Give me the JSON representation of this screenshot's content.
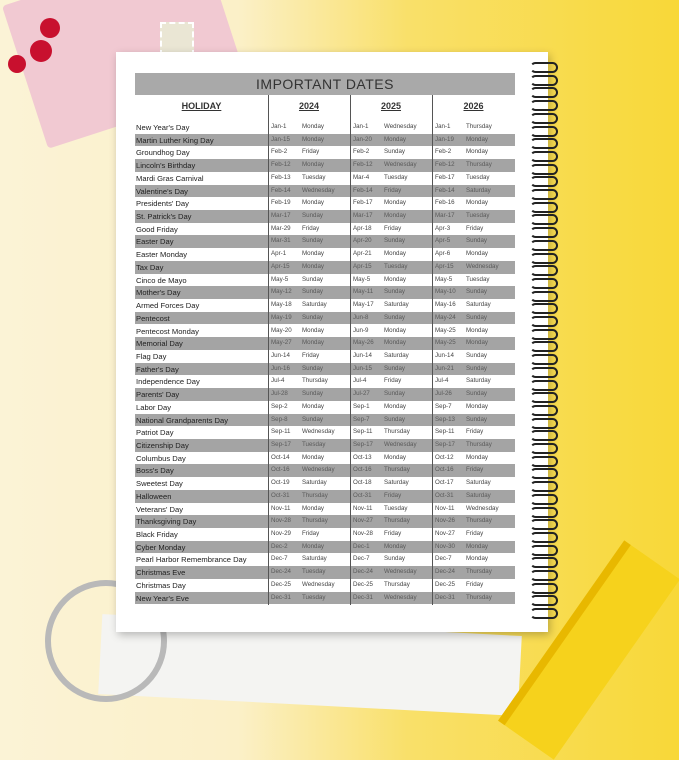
{
  "title": "IMPORTANT DATES",
  "headers": {
    "holiday": "HOLIDAY",
    "years": [
      "2024",
      "2025",
      "2026"
    ]
  },
  "rows": [
    {
      "holiday": "New Year's Day",
      "dates": [
        [
          "Jan-1",
          "Monday"
        ],
        [
          "Jan-1",
          "Wednesday"
        ],
        [
          "Jan-1",
          "Thursday"
        ]
      ]
    },
    {
      "holiday": "Martin Luther King Day",
      "dates": [
        [
          "Jan-15",
          "Monday"
        ],
        [
          "Jan-20",
          "Monday"
        ],
        [
          "Jan-19",
          "Monday"
        ]
      ]
    },
    {
      "holiday": "Groundhog Day",
      "dates": [
        [
          "Feb-2",
          "Friday"
        ],
        [
          "Feb-2",
          "Sunday"
        ],
        [
          "Feb-2",
          "Monday"
        ]
      ]
    },
    {
      "holiday": "Lincoln's Birthday",
      "dates": [
        [
          "Feb-12",
          "Monday"
        ],
        [
          "Feb-12",
          "Wednesday"
        ],
        [
          "Feb-12",
          "Thursday"
        ]
      ]
    },
    {
      "holiday": "Mardi Gras Carnival",
      "dates": [
        [
          "Feb-13",
          "Tuesday"
        ],
        [
          "Mar-4",
          "Tuesday"
        ],
        [
          "Feb-17",
          "Tuesday"
        ]
      ]
    },
    {
      "holiday": "Valentine's Day",
      "dates": [
        [
          "Feb-14",
          "Wednesday"
        ],
        [
          "Feb-14",
          "Friday"
        ],
        [
          "Feb-14",
          "Saturday"
        ]
      ]
    },
    {
      "holiday": "Presidents' Day",
      "dates": [
        [
          "Feb-19",
          "Monday"
        ],
        [
          "Feb-17",
          "Monday"
        ],
        [
          "Feb-16",
          "Monday"
        ]
      ]
    },
    {
      "holiday": "St. Patrick's Day",
      "dates": [
        [
          "Mar-17",
          "Sunday"
        ],
        [
          "Mar-17",
          "Monday"
        ],
        [
          "Mar-17",
          "Tuesday"
        ]
      ]
    },
    {
      "holiday": "Good Friday",
      "dates": [
        [
          "Mar-29",
          "Friday"
        ],
        [
          "Apr-18",
          "Friday"
        ],
        [
          "Apr-3",
          "Friday"
        ]
      ]
    },
    {
      "holiday": "Easter Day",
      "dates": [
        [
          "Mar-31",
          "Sunday"
        ],
        [
          "Apr-20",
          "Sunday"
        ],
        [
          "Apr-5",
          "Sunday"
        ]
      ]
    },
    {
      "holiday": "Easter Monday",
      "dates": [
        [
          "Apr-1",
          "Monday"
        ],
        [
          "Apr-21",
          "Monday"
        ],
        [
          "Apr-6",
          "Monday"
        ]
      ]
    },
    {
      "holiday": "Tax Day",
      "dates": [
        [
          "Apr-15",
          "Monday"
        ],
        [
          "Apr-15",
          "Tuesday"
        ],
        [
          "Apr-15",
          "Wednesday"
        ]
      ]
    },
    {
      "holiday": "Cinco de Mayo",
      "dates": [
        [
          "May-5",
          "Sunday"
        ],
        [
          "May-5",
          "Monday"
        ],
        [
          "May-5",
          "Tuesday"
        ]
      ]
    },
    {
      "holiday": "Mother's Day",
      "dates": [
        [
          "May-12",
          "Sunday"
        ],
        [
          "May-11",
          "Sunday"
        ],
        [
          "May-10",
          "Sunday"
        ]
      ]
    },
    {
      "holiday": "Armed Forces Day",
      "dates": [
        [
          "May-18",
          "Saturday"
        ],
        [
          "May-17",
          "Saturday"
        ],
        [
          "May-16",
          "Saturday"
        ]
      ]
    },
    {
      "holiday": "Pentecost",
      "dates": [
        [
          "May-19",
          "Sunday"
        ],
        [
          "Jun-8",
          "Sunday"
        ],
        [
          "May-24",
          "Sunday"
        ]
      ]
    },
    {
      "holiday": "Pentecost Monday",
      "dates": [
        [
          "May-20",
          "Monday"
        ],
        [
          "Jun-9",
          "Monday"
        ],
        [
          "May-25",
          "Monday"
        ]
      ]
    },
    {
      "holiday": "Memorial Day",
      "dates": [
        [
          "May-27",
          "Monday"
        ],
        [
          "May-26",
          "Monday"
        ],
        [
          "May-25",
          "Monday"
        ]
      ]
    },
    {
      "holiday": "Flag Day",
      "dates": [
        [
          "Jun-14",
          "Friday"
        ],
        [
          "Jun-14",
          "Saturday"
        ],
        [
          "Jun-14",
          "Sunday"
        ]
      ]
    },
    {
      "holiday": "Father's Day",
      "dates": [
        [
          "Jun-16",
          "Sunday"
        ],
        [
          "Jun-15",
          "Sunday"
        ],
        [
          "Jun-21",
          "Sunday"
        ]
      ]
    },
    {
      "holiday": "Independence Day",
      "dates": [
        [
          "Jul-4",
          "Thursday"
        ],
        [
          "Jul-4",
          "Friday"
        ],
        [
          "Jul-4",
          "Saturday"
        ]
      ]
    },
    {
      "holiday": "Parents' Day",
      "dates": [
        [
          "Jul-28",
          "Sunday"
        ],
        [
          "Jul-27",
          "Sunday"
        ],
        [
          "Jul-26",
          "Sunday"
        ]
      ]
    },
    {
      "holiday": "Labor Day",
      "dates": [
        [
          "Sep-2",
          "Monday"
        ],
        [
          "Sep-1",
          "Monday"
        ],
        [
          "Sep-7",
          "Monday"
        ]
      ]
    },
    {
      "holiday": "National Grandparents Day",
      "dates": [
        [
          "Sep-8",
          "Sunday"
        ],
        [
          "Sep-7",
          "Sunday"
        ],
        [
          "Sep-13",
          "Sunday"
        ]
      ]
    },
    {
      "holiday": "Patriot Day",
      "dates": [
        [
          "Sep-11",
          "Wednesday"
        ],
        [
          "Sep-11",
          "Thursday"
        ],
        [
          "Sep-11",
          "Friday"
        ]
      ]
    },
    {
      "holiday": "Citizenship Day",
      "dates": [
        [
          "Sep-17",
          "Tuesday"
        ],
        [
          "Sep-17",
          "Wednesday"
        ],
        [
          "Sep-17",
          "Thursday"
        ]
      ]
    },
    {
      "holiday": "Columbus Day",
      "dates": [
        [
          "Oct-14",
          "Monday"
        ],
        [
          "Oct-13",
          "Monday"
        ],
        [
          "Oct-12",
          "Monday"
        ]
      ]
    },
    {
      "holiday": "Boss's Day",
      "dates": [
        [
          "Oct-16",
          "Wednesday"
        ],
        [
          "Oct-16",
          "Thursday"
        ],
        [
          "Oct-16",
          "Friday"
        ]
      ]
    },
    {
      "holiday": "Sweetest Day",
      "dates": [
        [
          "Oct-19",
          "Saturday"
        ],
        [
          "Oct-18",
          "Saturday"
        ],
        [
          "Oct-17",
          "Saturday"
        ]
      ]
    },
    {
      "holiday": "Halloween",
      "dates": [
        [
          "Oct-31",
          "Thursday"
        ],
        [
          "Oct-31",
          "Friday"
        ],
        [
          "Oct-31",
          "Saturday"
        ]
      ]
    },
    {
      "holiday": "Veterans' Day",
      "dates": [
        [
          "Nov-11",
          "Monday"
        ],
        [
          "Nov-11",
          "Tuesday"
        ],
        [
          "Nov-11",
          "Wednesday"
        ]
      ]
    },
    {
      "holiday": "Thanksgiving Day",
      "dates": [
        [
          "Nov-28",
          "Thursday"
        ],
        [
          "Nov-27",
          "Thursday"
        ],
        [
          "Nov-26",
          "Thursday"
        ]
      ]
    },
    {
      "holiday": "Black Friday",
      "dates": [
        [
          "Nov-29",
          "Friday"
        ],
        [
          "Nov-28",
          "Friday"
        ],
        [
          "Nov-27",
          "Friday"
        ]
      ]
    },
    {
      "holiday": "Cyber Monday",
      "dates": [
        [
          "Dec-2",
          "Monday"
        ],
        [
          "Dec-1",
          "Monday"
        ],
        [
          "Nov-30",
          "Monday"
        ]
      ]
    },
    {
      "holiday": "Pearl Harbor Remembrance Day",
      "dates": [
        [
          "Dec-7",
          "Saturday"
        ],
        [
          "Dec-7",
          "Sunday"
        ],
        [
          "Dec-7",
          "Monday"
        ]
      ]
    },
    {
      "holiday": "Christmas Eve",
      "dates": [
        [
          "Dec-24",
          "Tuesday"
        ],
        [
          "Dec-24",
          "Wednesday"
        ],
        [
          "Dec-24",
          "Thursday"
        ]
      ]
    },
    {
      "holiday": "Christmas Day",
      "dates": [
        [
          "Dec-25",
          "Wednesday"
        ],
        [
          "Dec-25",
          "Thursday"
        ],
        [
          "Dec-25",
          "Friday"
        ]
      ]
    },
    {
      "holiday": "New Year's Eve",
      "dates": [
        [
          "Dec-31",
          "Tuesday"
        ],
        [
          "Dec-31",
          "Wednesday"
        ],
        [
          "Dec-31",
          "Thursday"
        ]
      ]
    }
  ],
  "colors": {
    "shade": "#a4a4a4",
    "background_yellow": "#f8d838",
    "page": "#ffffff"
  }
}
